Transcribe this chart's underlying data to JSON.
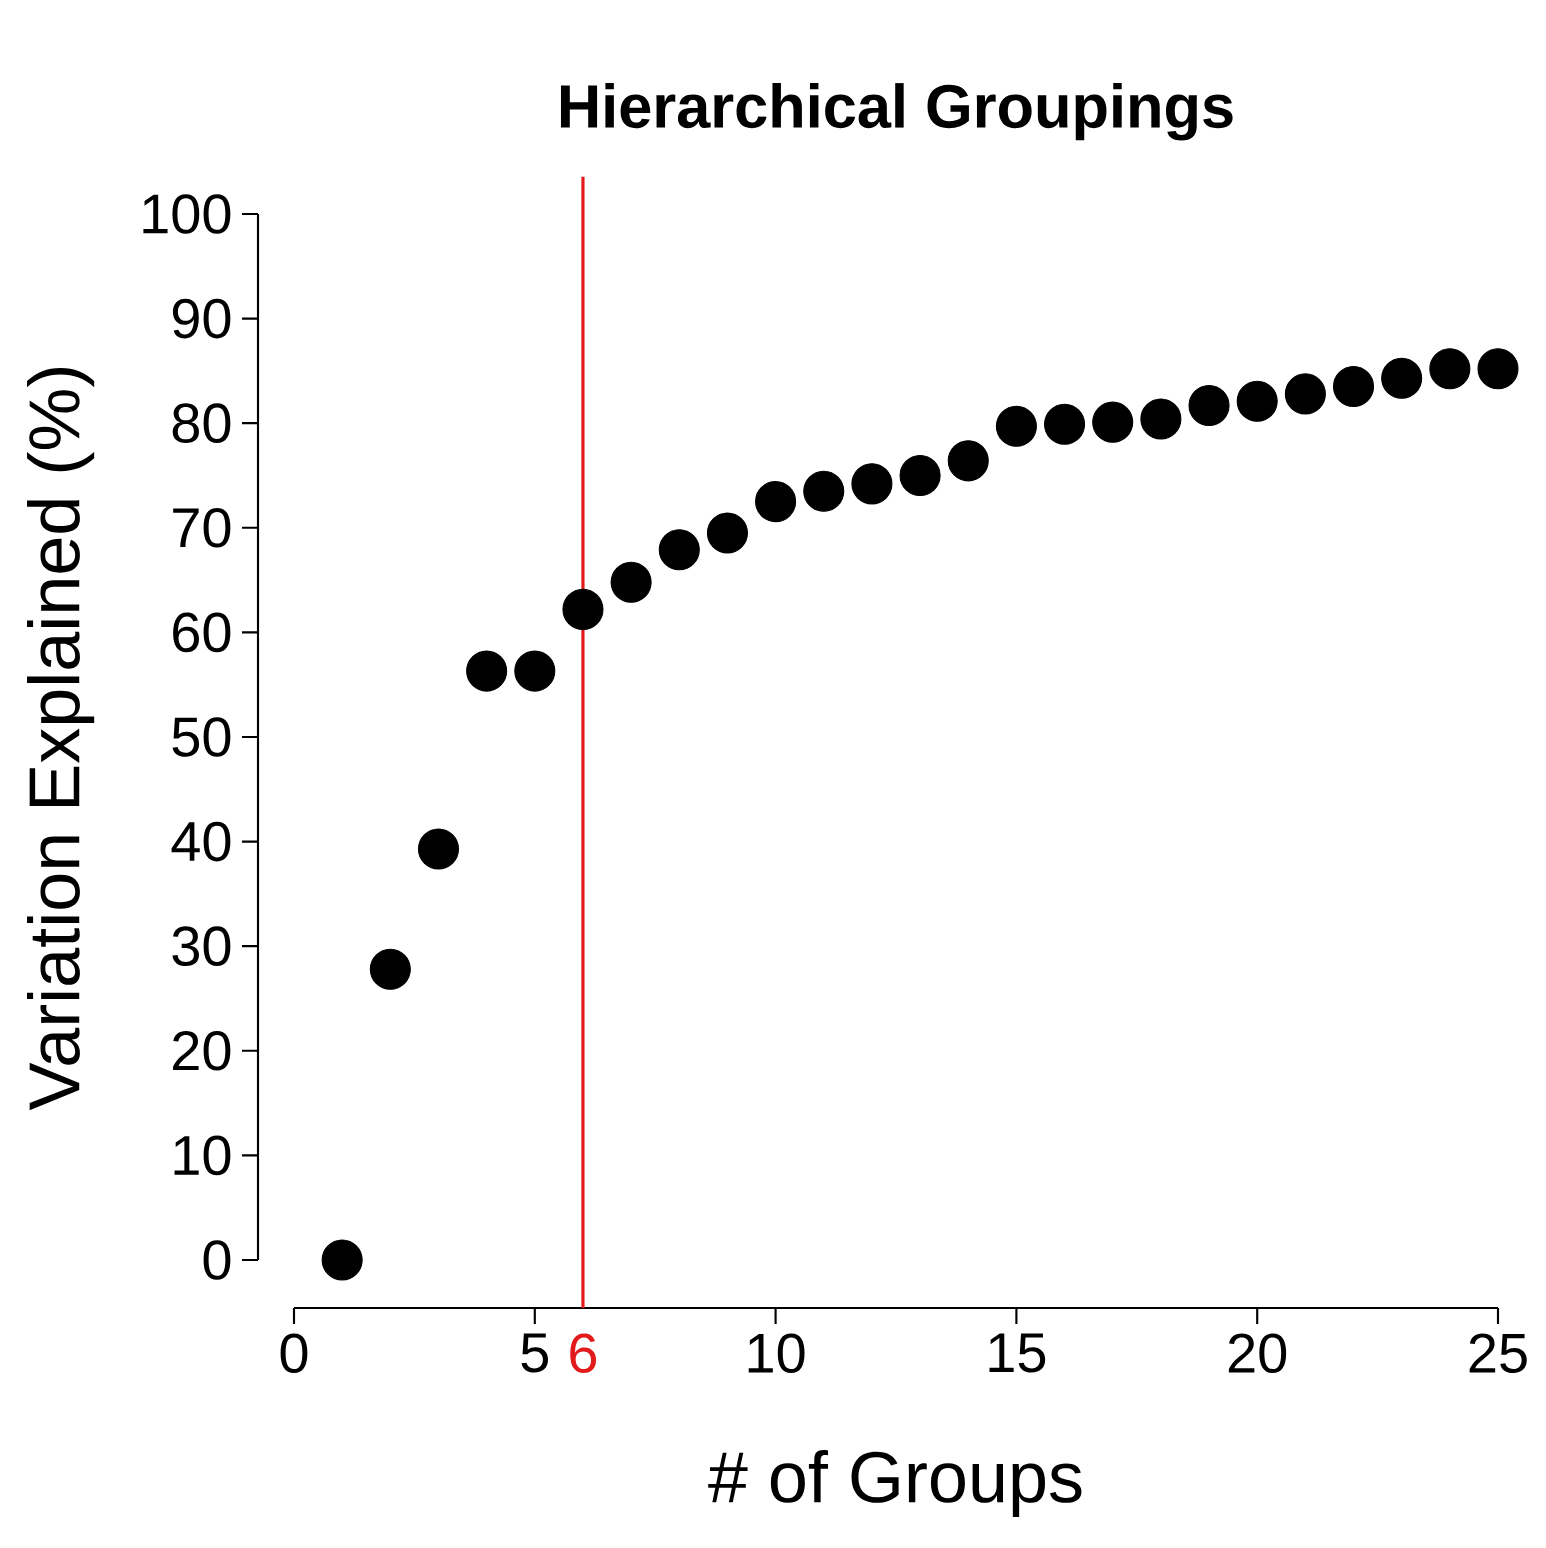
{
  "chart_data": {
    "type": "scatter",
    "title": "Hierarchical Groupings",
    "xlabel": "# of Groups",
    "ylabel": "Variation Explained (%)",
    "x": [
      1,
      2,
      3,
      4,
      5,
      6,
      7,
      8,
      9,
      10,
      11,
      12,
      13,
      14,
      15,
      16,
      17,
      18,
      19,
      20,
      21,
      22,
      23,
      24,
      25
    ],
    "series": [
      {
        "color": "#000000",
        "values": [
          0,
          27.8,
          39.3,
          56.3,
          56.3,
          62.2,
          64.8,
          67.9,
          69.5,
          72.5,
          73.5,
          74.2,
          75.0,
          76.4,
          79.7,
          79.9,
          80.1,
          80.4,
          81.7,
          82.1,
          82.8,
          83.5,
          84.3,
          85.2,
          85.2
        ]
      }
    ],
    "xlim": [
      0,
      25
    ],
    "ylim": [
      0,
      100
    ],
    "xticks": [
      0,
      5,
      10,
      15,
      20,
      25
    ],
    "yticks": [
      0,
      10,
      20,
      30,
      40,
      50,
      60,
      70,
      80,
      90,
      100
    ],
    "ref_lines": [
      {
        "axis": "x",
        "value": 6,
        "label": "6",
        "color": "#e31a1c"
      }
    ],
    "marker": "circle",
    "grid": false
  }
}
